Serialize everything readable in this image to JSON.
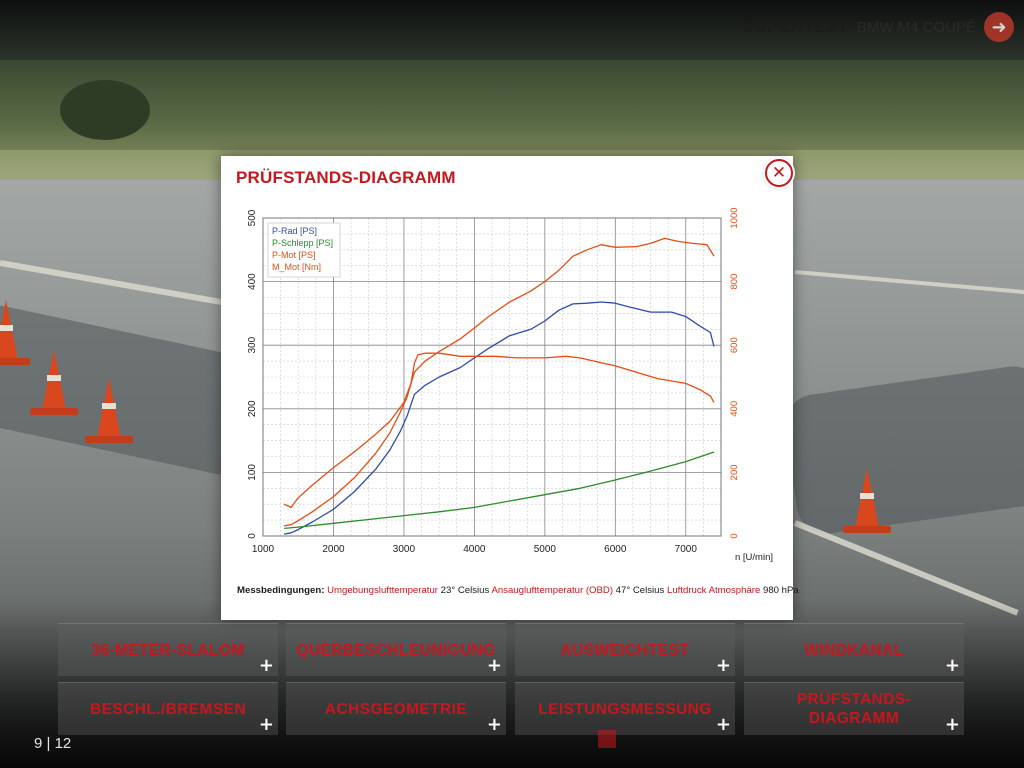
{
  "brand": {
    "title": "SUPERTEST",
    "subtitle": "BMW M4 COUPÉ",
    "back_icon": "arrow-left-icon"
  },
  "modal": {
    "title": "PRÜFSTANDS-DIAGRAMM",
    "close_icon": "close-icon",
    "conditions": {
      "label": "Messbedingungen:",
      "parts": [
        {
          "text": "Umgebungslufttemperatur",
          "red": true
        },
        {
          "text": " 23° Celsius ",
          "red": false
        },
        {
          "text": "Ansauglufttemperatur (OBD)",
          "red": true
        },
        {
          "text": " 47° Celsius ",
          "red": false
        },
        {
          "text": "Luftdruck Atmosphäre",
          "red": true
        },
        {
          "text": " 980 hPa",
          "red": false
        }
      ]
    }
  },
  "chart_data": {
    "type": "line",
    "xlabel": "n [U/min]",
    "xlim": [
      1000,
      7500
    ],
    "x_ticks": [
      1000,
      2000,
      3000,
      4000,
      5000,
      6000,
      7000
    ],
    "ylim_left": [
      0,
      500
    ],
    "y_ticks_left": [
      0,
      100,
      200,
      300,
      400,
      500
    ],
    "ylim_right": [
      0,
      1000
    ],
    "y_ticks_right": [
      0,
      200,
      400,
      600,
      800,
      1000
    ],
    "grid": true,
    "legend_placement": "top-left",
    "series": [
      {
        "name": "P-Rad [PS]",
        "axis": "left",
        "color": "#2f4bab",
        "x": [
          1300,
          1400,
          1500,
          1700,
          2000,
          2300,
          2600,
          2800,
          2950,
          3050,
          3150,
          3300,
          3500,
          3800,
          4000,
          4200,
          4500,
          4800,
          5000,
          5200,
          5400,
          5600,
          5800,
          6000,
          6200,
          6500,
          6800,
          7000,
          7200,
          7350,
          7400
        ],
        "y": [
          3,
          5,
          10,
          22,
          42,
          70,
          105,
          135,
          165,
          190,
          223,
          237,
          250,
          265,
          280,
          295,
          315,
          325,
          338,
          355,
          365,
          366,
          368,
          366,
          360,
          352,
          352,
          345,
          330,
          320,
          298
        ]
      },
      {
        "name": "P-Schlepp [PS]",
        "axis": "left",
        "color": "#2c8a2c",
        "x": [
          1300,
          1500,
          2000,
          2500,
          3000,
          3500,
          4000,
          4500,
          5000,
          5500,
          6000,
          6500,
          7000,
          7400
        ],
        "y": [
          12,
          14,
          20,
          26,
          32,
          38,
          45,
          55,
          65,
          75,
          88,
          102,
          117,
          132
        ]
      },
      {
        "name": "P-Mot [PS]",
        "axis": "left",
        "color": "#e84c12",
        "x": [
          1300,
          1400,
          1500,
          1700,
          2000,
          2300,
          2600,
          2800,
          2950,
          3050,
          3100,
          3150,
          3300,
          3500,
          3800,
          4000,
          4200,
          4500,
          4800,
          5000,
          5200,
          5400,
          5600,
          5800,
          6000,
          6300,
          6500,
          6700,
          6900,
          7100,
          7300,
          7400
        ],
        "y": [
          16,
          18,
          24,
          38,
          62,
          92,
          130,
          162,
          195,
          220,
          240,
          258,
          275,
          290,
          310,
          327,
          345,
          368,
          385,
          400,
          418,
          440,
          450,
          458,
          454,
          455,
          460,
          468,
          463,
          460,
          458,
          440
        ]
      },
      {
        "name": "M_Mot [Nm]",
        "axis": "right",
        "color": "#e84c12",
        "x": [
          1300,
          1400,
          1500,
          1700,
          2000,
          2300,
          2600,
          2800,
          3000,
          3100,
          3150,
          3200,
          3300,
          3500,
          3800,
          4000,
          4300,
          4600,
          5000,
          5300,
          5500,
          5800,
          6000,
          6300,
          6600,
          7000,
          7200,
          7350,
          7400
        ],
        "y": [
          100,
          90,
          120,
          160,
          215,
          265,
          320,
          360,
          420,
          480,
          545,
          570,
          575,
          575,
          565,
          565,
          565,
          560,
          560,
          565,
          560,
          545,
          535,
          515,
          495,
          480,
          460,
          440,
          420
        ]
      }
    ]
  },
  "tiles": [
    {
      "label": "36-METER-SLALOM",
      "plus": "+"
    },
    {
      "label": "QUERBESCHLEUNIGUNG",
      "plus": "+"
    },
    {
      "label": "AUSWEICHTEST",
      "plus": "+"
    },
    {
      "label": "WINDKANAL",
      "plus": "+"
    },
    {
      "label": "BESCHL./BREMSEN",
      "plus": "+"
    },
    {
      "label": "ACHSGEOMETRIE",
      "plus": "+"
    },
    {
      "label": "LEISTUNGSMESSUNG",
      "plus": "+"
    },
    {
      "label": "PRÜFSTANDS-\nDIAGRAMM",
      "plus": "+"
    }
  ],
  "pager": {
    "text": "9 | 12"
  }
}
